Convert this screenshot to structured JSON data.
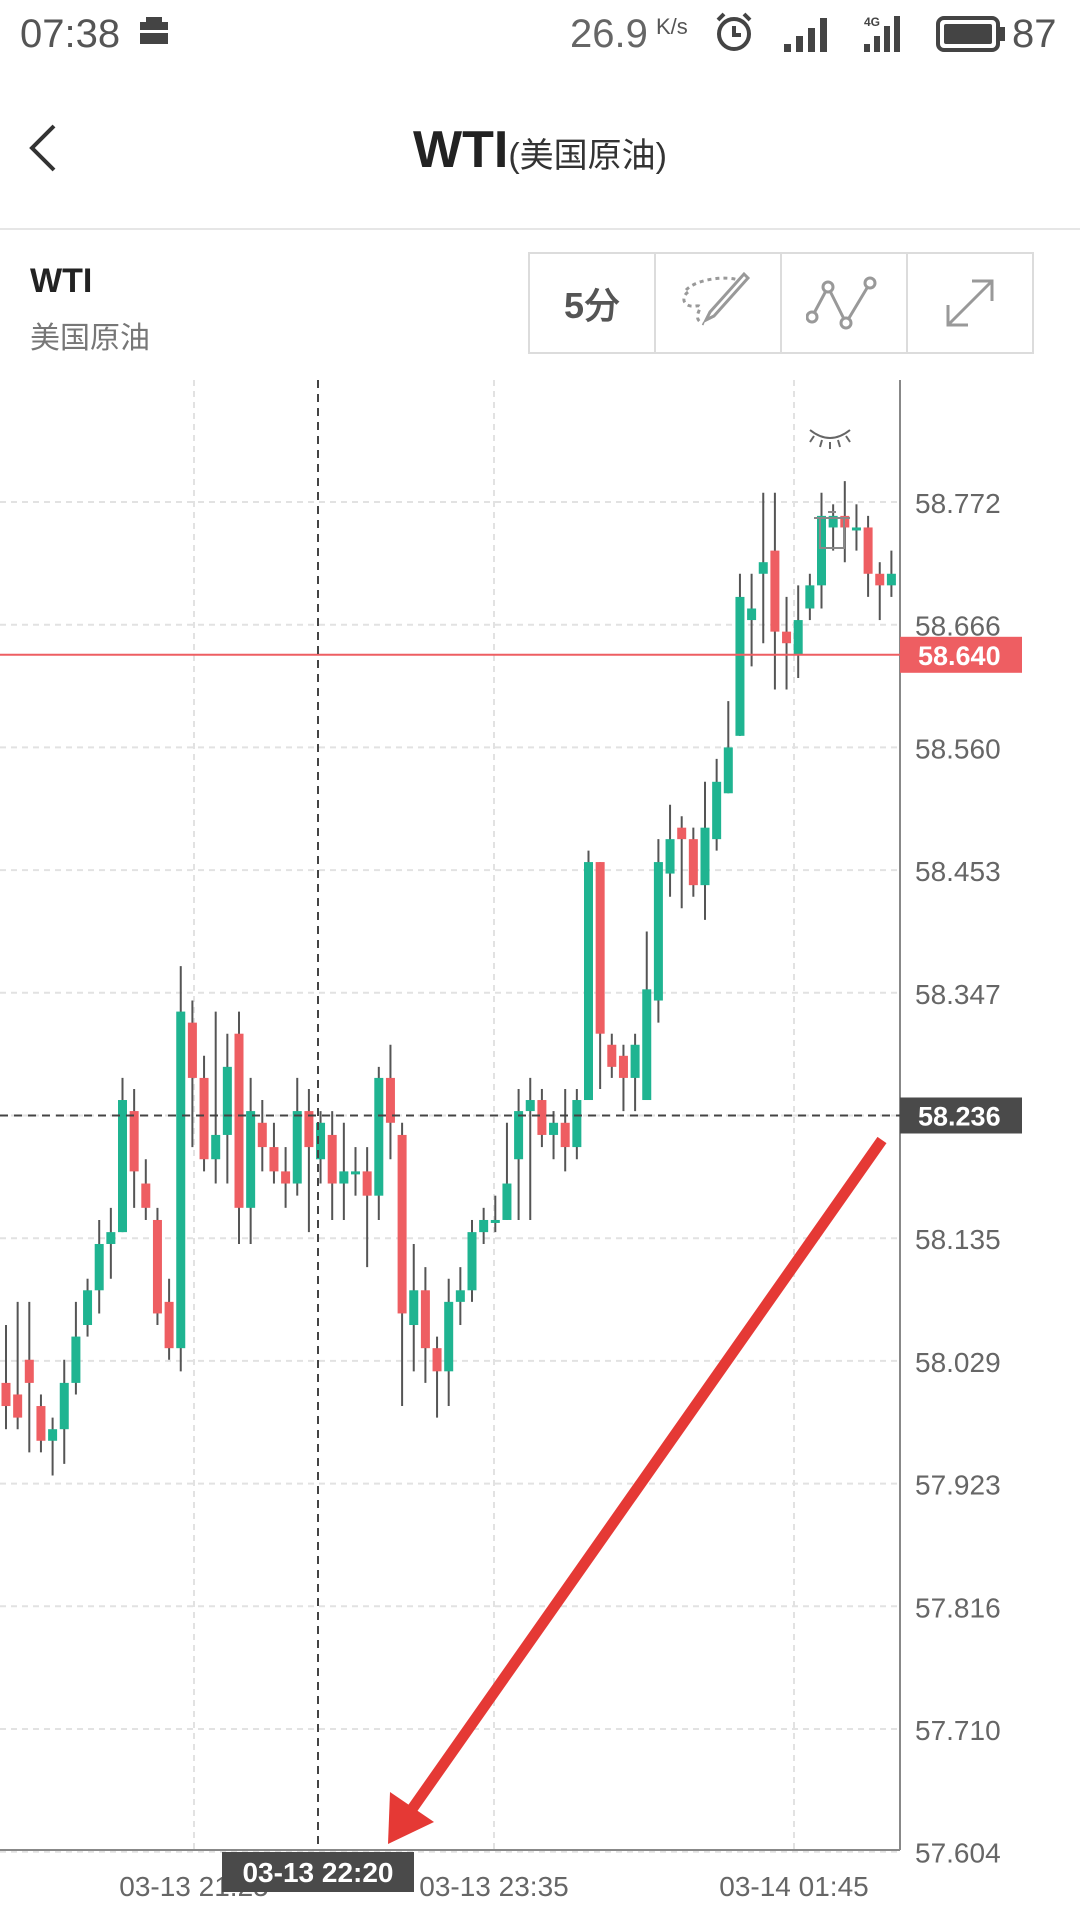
{
  "status_bar": {
    "time": "07:38",
    "net_speed": "26.9",
    "net_unit": "K/s",
    "network": "4G",
    "battery": "87"
  },
  "nav": {
    "title": "WTI",
    "subtitle": "(美国原油)"
  },
  "instrument": {
    "symbol": "WTI",
    "name": "美国原油"
  },
  "toolbar": {
    "period": "5分",
    "draw_icon": "draw-pen-icon",
    "indicator_icon": "line-chart-icon",
    "fullscreen_icon": "expand-icon"
  },
  "chart_data": {
    "type": "candlestick",
    "y_ticks": [
      "58.772",
      "58.666",
      "58.560",
      "58.453",
      "58.347",
      "58.236",
      "58.135",
      "58.029",
      "57.923",
      "57.816",
      "57.710",
      "57.604"
    ],
    "ylim": [
      57.604,
      58.878
    ],
    "x_ticks": [
      "03-13 21:25",
      "03-13 23:35",
      "03-14 01:45"
    ],
    "current_price": "58.640",
    "crosshair_price": "58.236",
    "crosshair_time": "03-13 22:20",
    "colors": {
      "up": "#1fb491",
      "down": "#ee5e62",
      "price_line": "#ee5e62"
    },
    "candles": [
      [
        58.01,
        57.99,
        58.06,
        57.97
      ],
      [
        58.0,
        57.98,
        58.08,
        57.97
      ],
      [
        58.03,
        58.01,
        58.08,
        57.95
      ],
      [
        57.99,
        57.96,
        58.0,
        57.95
      ],
      [
        57.96,
        57.97,
        57.98,
        57.93
      ],
      [
        57.97,
        58.01,
        58.03,
        57.94
      ],
      [
        58.01,
        58.05,
        58.08,
        58.0
      ],
      [
        58.06,
        58.09,
        58.1,
        58.05
      ],
      [
        58.09,
        58.13,
        58.15,
        58.07
      ],
      [
        58.13,
        58.14,
        58.16,
        58.1
      ],
      [
        58.14,
        58.25,
        58.27,
        58.14
      ],
      [
        58.24,
        58.19,
        58.26,
        58.16
      ],
      [
        58.18,
        58.16,
        58.2,
        58.15
      ],
      [
        58.15,
        58.07,
        58.16,
        58.06
      ],
      [
        58.08,
        58.04,
        58.1,
        58.03
      ],
      [
        58.04,
        58.33,
        58.37,
        58.02
      ],
      [
        58.32,
        58.27,
        58.34,
        58.21
      ],
      [
        58.27,
        58.2,
        58.29,
        58.19
      ],
      [
        58.2,
        58.22,
        58.33,
        58.18
      ],
      [
        58.22,
        58.28,
        58.31,
        58.18
      ],
      [
        58.31,
        58.16,
        58.33,
        58.13
      ],
      [
        58.16,
        58.24,
        58.27,
        58.13
      ],
      [
        58.23,
        58.21,
        58.25,
        58.19
      ],
      [
        58.21,
        58.19,
        58.23,
        58.18
      ],
      [
        58.19,
        58.18,
        58.21,
        58.16
      ],
      [
        58.18,
        58.24,
        58.27,
        58.17
      ],
      [
        58.24,
        58.21,
        58.26,
        58.14
      ],
      [
        58.2,
        58.23,
        58.24,
        58.18
      ],
      [
        58.22,
        58.18,
        58.24,
        58.15
      ],
      [
        58.18,
        58.19,
        58.23,
        58.15
      ],
      [
        58.19,
        58.19,
        58.21,
        58.17
      ],
      [
        58.19,
        58.17,
        58.21,
        58.11
      ],
      [
        58.17,
        58.27,
        58.28,
        58.15
      ],
      [
        58.27,
        58.23,
        58.3,
        58.2
      ],
      [
        58.22,
        58.07,
        58.23,
        57.99
      ],
      [
        58.06,
        58.09,
        58.13,
        58.02
      ],
      [
        58.09,
        58.04,
        58.11,
        58.01
      ],
      [
        58.04,
        58.02,
        58.05,
        57.98
      ],
      [
        58.02,
        58.08,
        58.1,
        57.99
      ],
      [
        58.08,
        58.09,
        58.11,
        58.06
      ],
      [
        58.09,
        58.14,
        58.15,
        58.08
      ],
      [
        58.14,
        58.15,
        58.16,
        58.13
      ],
      [
        58.15,
        58.15,
        58.17,
        58.14
      ],
      [
        58.15,
        58.18,
        58.23,
        58.15
      ],
      [
        58.2,
        58.24,
        58.26,
        58.15
      ],
      [
        58.24,
        58.25,
        58.27,
        58.15
      ],
      [
        58.25,
        58.22,
        58.26,
        58.21
      ],
      [
        58.22,
        58.23,
        58.24,
        58.2
      ],
      [
        58.23,
        58.21,
        58.26,
        58.19
      ],
      [
        58.21,
        58.25,
        58.26,
        58.2
      ],
      [
        58.25,
        58.46,
        58.47,
        58.25
      ],
      [
        58.46,
        58.31,
        58.46,
        58.26
      ],
      [
        58.3,
        58.28,
        58.31,
        58.27
      ],
      [
        58.29,
        58.27,
        58.3,
        58.24
      ],
      [
        58.27,
        58.3,
        58.31,
        58.24
      ],
      [
        58.25,
        58.35,
        58.4,
        58.25
      ],
      [
        58.34,
        58.46,
        58.48,
        58.32
      ],
      [
        58.45,
        58.48,
        58.51,
        58.43
      ],
      [
        58.49,
        58.48,
        58.5,
        58.42
      ],
      [
        58.48,
        58.44,
        58.49,
        58.43
      ],
      [
        58.44,
        58.49,
        58.53,
        58.41
      ],
      [
        58.48,
        58.53,
        58.55,
        58.47
      ],
      [
        58.52,
        58.56,
        58.6,
        58.52
      ],
      [
        58.57,
        58.69,
        58.71,
        58.57
      ],
      [
        58.67,
        58.68,
        58.71,
        58.63
      ],
      [
        58.71,
        58.72,
        58.78,
        58.65
      ],
      [
        58.73,
        58.66,
        58.78,
        58.61
      ],
      [
        58.66,
        58.65,
        58.69,
        58.61
      ],
      [
        58.64,
        58.67,
        58.7,
        58.62
      ],
      [
        58.68,
        58.7,
        58.71,
        58.67
      ],
      [
        58.7,
        58.76,
        58.78,
        58.68
      ],
      [
        58.75,
        58.76,
        58.77,
        58.73
      ],
      [
        58.76,
        58.75,
        58.79,
        58.72
      ],
      [
        58.75,
        58.75,
        58.77,
        58.73
      ],
      [
        58.75,
        58.71,
        58.76,
        58.69
      ],
      [
        58.71,
        58.7,
        58.72,
        58.67
      ],
      [
        58.7,
        58.71,
        58.73,
        58.69
      ]
    ]
  }
}
